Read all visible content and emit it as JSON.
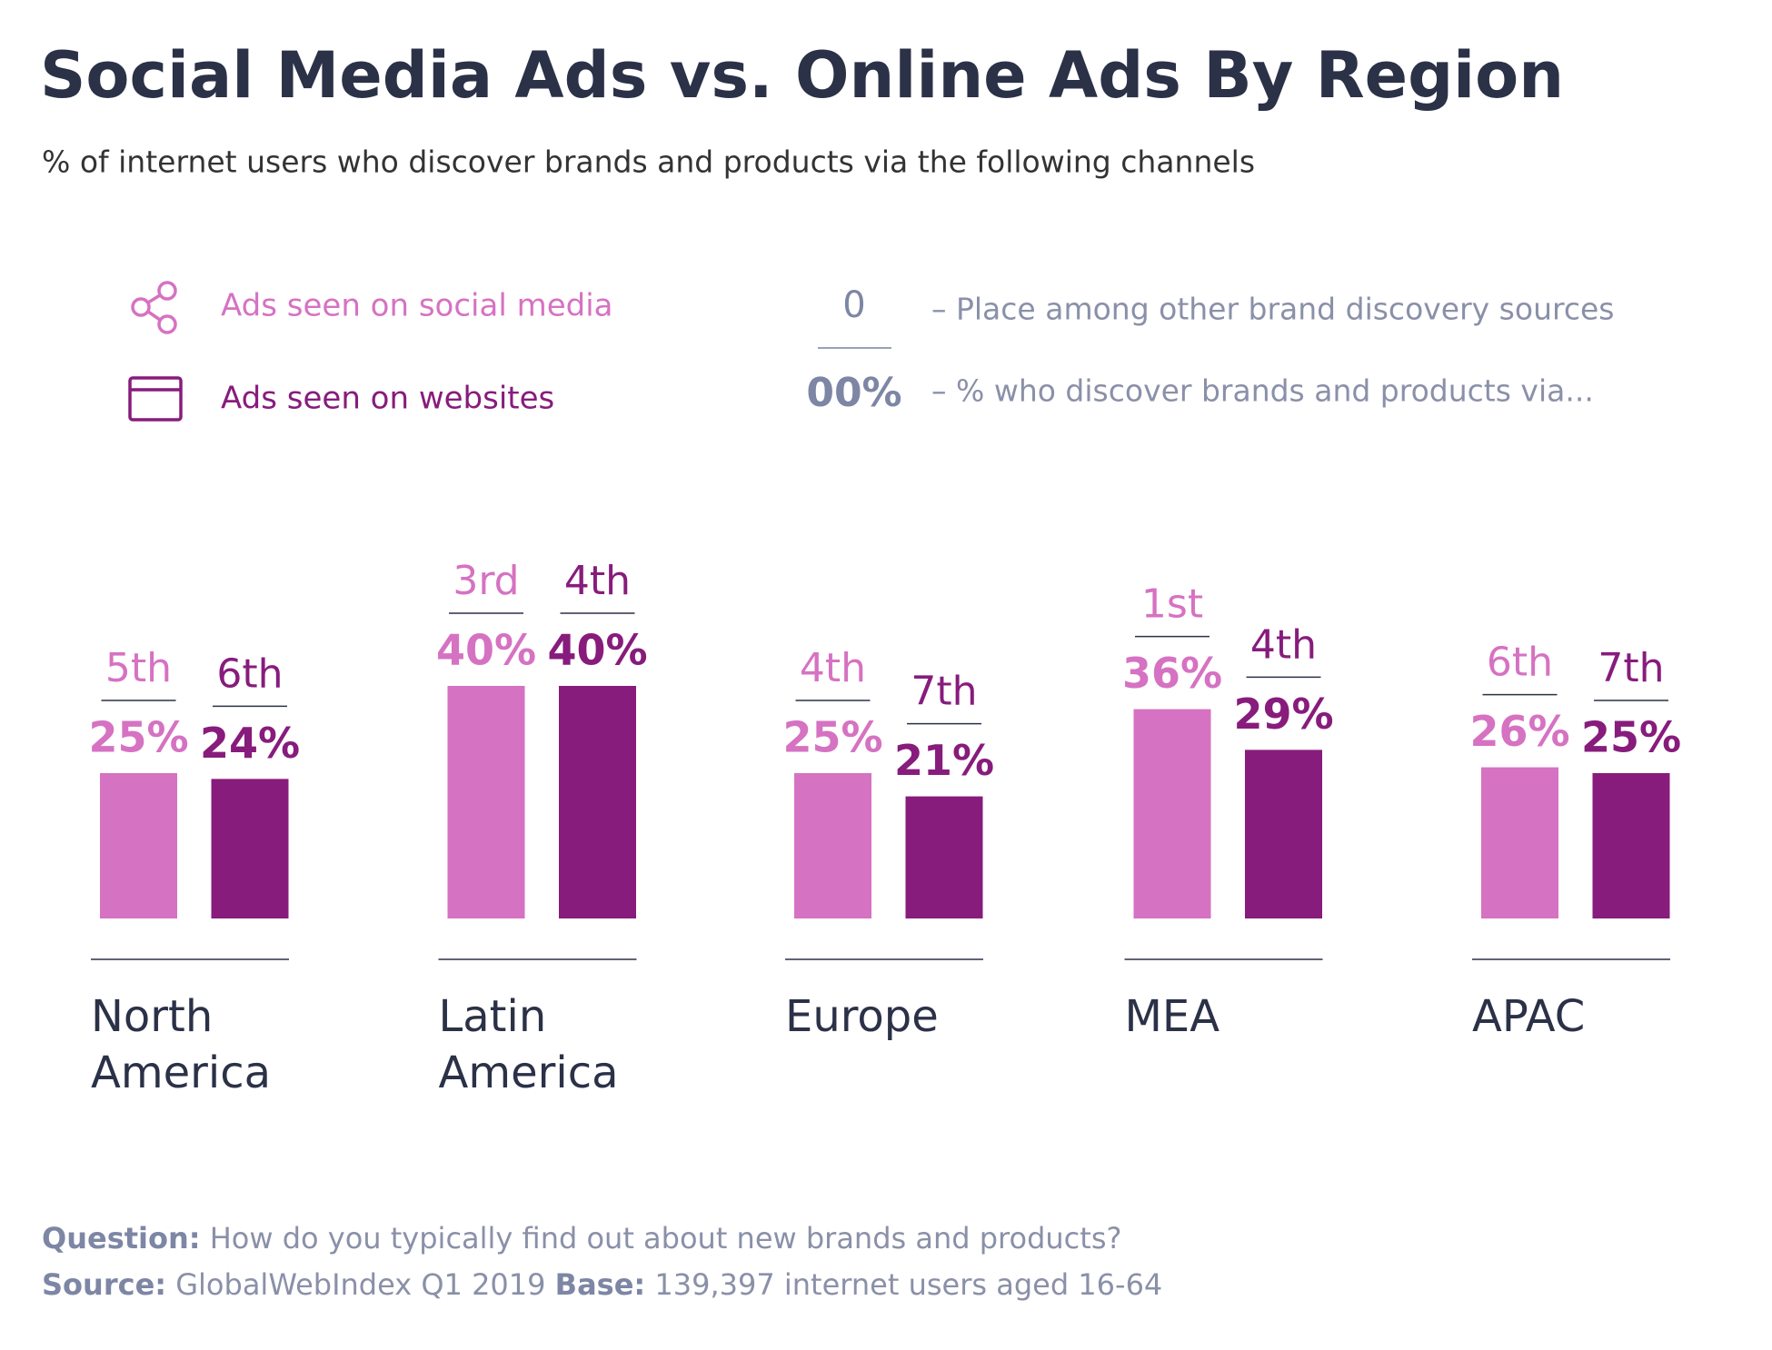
{
  "chart_data": {
    "type": "bar",
    "title": "Social Media Ads vs. Online Ads By Region",
    "subtitle": "% of internet users who discover brands and products via the following channels",
    "categories": [
      "North America",
      "Latin America",
      "Europe",
      "MEA",
      "APAC"
    ],
    "series": [
      {
        "name": "Ads seen on social media",
        "color": "#d672c2",
        "values": [
          25,
          40,
          25,
          36,
          26
        ],
        "value_labels": [
          "25%",
          "40%",
          "25%",
          "36%",
          "26%"
        ],
        "rank_labels": [
          "5th",
          "3rd",
          "4th",
          "1st",
          "6th"
        ]
      },
      {
        "name": "Ads seen on websites",
        "color": "#871c7c",
        "values": [
          24,
          40,
          21,
          29,
          25
        ],
        "value_labels": [
          "24%",
          "40%",
          "21%",
          "29%",
          "25%"
        ],
        "rank_labels": [
          "6th",
          "4th",
          "7th",
          "4th",
          "7th"
        ]
      }
    ],
    "key": {
      "rank_sample": "0",
      "rank_text": "– Place among other brand discovery sources",
      "value_sample": "00%",
      "value_text": "– % who discover brands and products via..."
    },
    "footer": {
      "question_label": "Question:",
      "question": "How do you typically find out about new brands and products?",
      "source_label": "Source:",
      "source": "GlobalWebIndex Q1 2019",
      "base_label": "Base:",
      "base": "139,397 internet users aged 16-64"
    }
  }
}
